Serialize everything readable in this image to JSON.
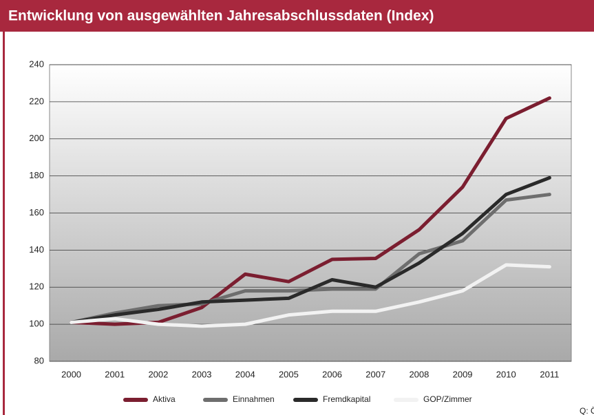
{
  "chart_data": {
    "type": "line",
    "title": "Entwicklung von ausgewählten Jahresabschlussdaten (Index)",
    "categories": [
      "2000",
      "2001",
      "2002",
      "2003",
      "2004",
      "2005",
      "2006",
      "2007",
      "2008",
      "2009",
      "2010",
      "2011"
    ],
    "series": [
      {
        "name": "Aktiva",
        "color": "#7b1e30",
        "values": [
          101,
          100,
          101,
          109,
          127,
          123,
          135,
          135.5,
          151,
          174,
          211,
          222
        ]
      },
      {
        "name": "Einnahmen",
        "color": "#6e6e6e",
        "values": [
          101,
          106,
          110,
          111,
          118,
          118,
          119,
          119,
          138,
          145,
          167,
          170
        ]
      },
      {
        "name": "Fremdkapital",
        "color": "#2a2a2a",
        "values": [
          101,
          105,
          108,
          112,
          113,
          114,
          124,
          120,
          133,
          149,
          170,
          179
        ]
      },
      {
        "name": "GOP/Zimmer",
        "color": "#f2f2f2",
        "values": [
          101,
          103,
          100,
          99,
          100,
          105,
          107,
          107,
          112,
          118,
          132,
          131
        ]
      }
    ],
    "ylim": [
      80,
      240
    ],
    "yticks": [
      80,
      100,
      120,
      140,
      160,
      180,
      200,
      220,
      240
    ],
    "grid": true,
    "source": "Q: ÖHT"
  }
}
